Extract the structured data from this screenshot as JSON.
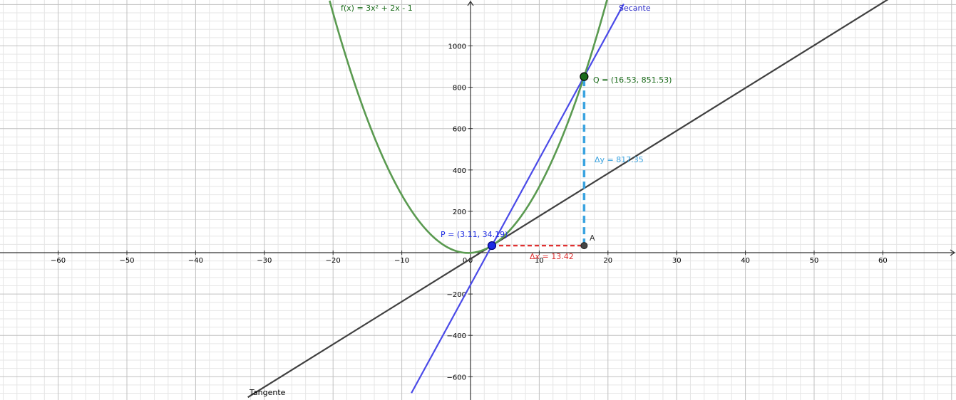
{
  "chart_data": {
    "type": "line",
    "x_range": [
      -70,
      70
    ],
    "y_range": [
      -700,
      1200
    ],
    "x_ticks": [
      -60,
      -50,
      -40,
      -30,
      -20,
      -10,
      0,
      10,
      20,
      30,
      40,
      50,
      60
    ],
    "y_ticks": [
      -600,
      -400,
      -200,
      200,
      400,
      600,
      800,
      1000
    ],
    "origin_label": "0",
    "grid": true,
    "function": {
      "label": "f(x) = 3x² + 2x - 1",
      "coefficients": {
        "a": 3,
        "b": 2,
        "c": -1
      },
      "color": "#5a9a50"
    },
    "points": {
      "P": {
        "label": "P = (3.11, 34.19)",
        "x": 3.11,
        "y": 34.19,
        "color": "#1c2be3"
      },
      "Q": {
        "label": "Q = (16.53, 851.53)",
        "x": 16.53,
        "y": 851.53,
        "color": "#1a6b1a"
      },
      "A": {
        "label": "A",
        "x": 16.53,
        "y": 34.19,
        "color": "#444444"
      }
    },
    "secant": {
      "label": "Secante",
      "color": "#4a4ae8"
    },
    "tangent": {
      "label": "Tangente",
      "color": "#404040"
    },
    "delta_x": {
      "label": "Δx = 13.42",
      "value": 13.42,
      "color": "#e03030"
    },
    "delta_y": {
      "label": "Δy = 817.35",
      "value": 817.35,
      "color": "#3aa3e0"
    }
  }
}
